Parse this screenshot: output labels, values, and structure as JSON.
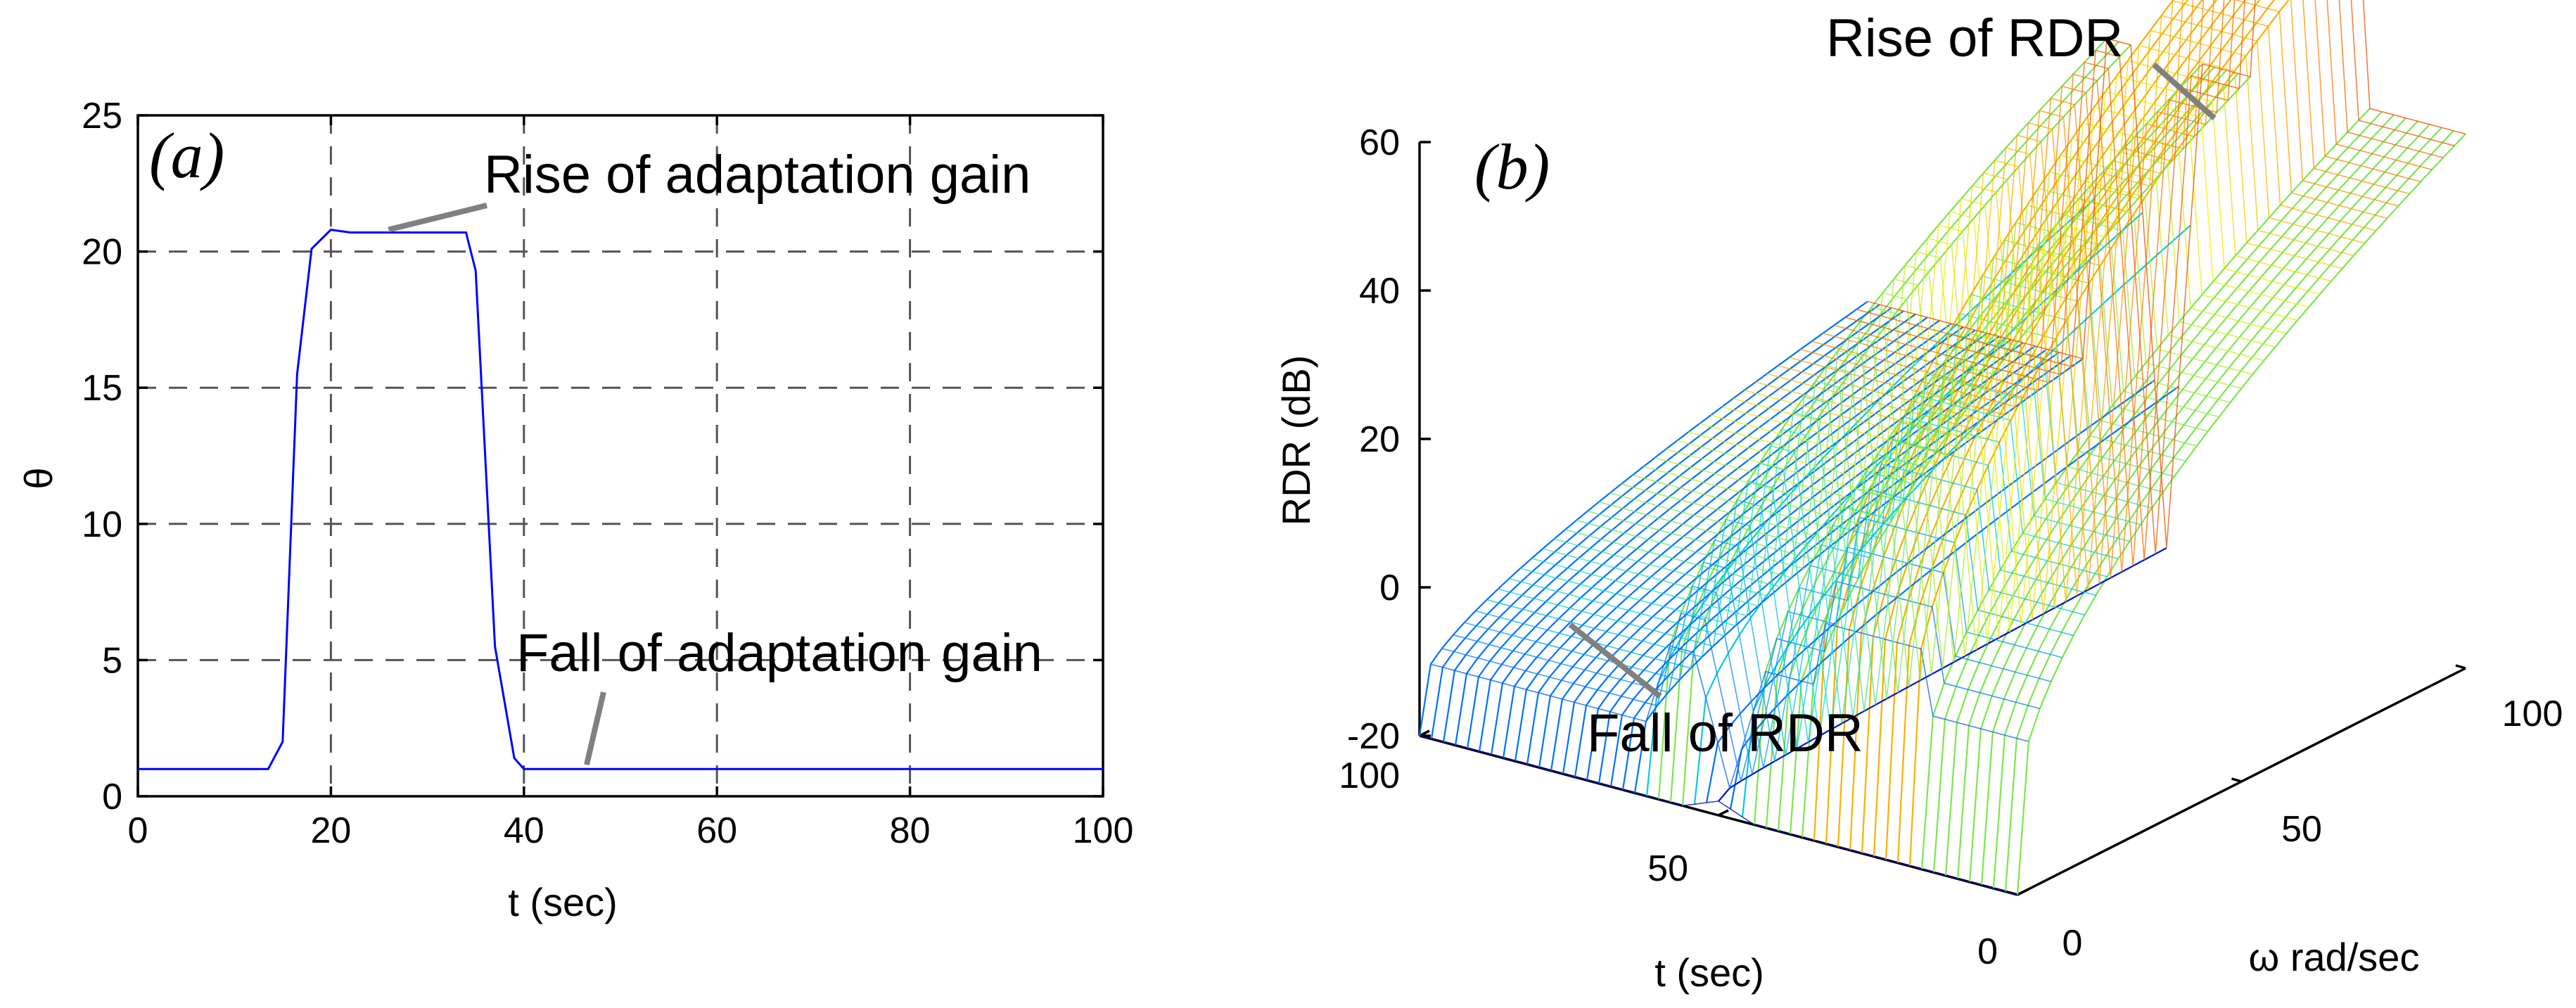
{
  "colors": {
    "theta_line": "#0000ff",
    "leader": "#808080",
    "grid": "#555555"
  },
  "chart_data": [
    {
      "id": "a",
      "type": "line",
      "panel_label": "(a)",
      "xlabel": "t (sec)",
      "ylabel": "θ",
      "xlim": [
        0,
        100
      ],
      "ylim": [
        0,
        25
      ],
      "xticks": [
        0,
        20,
        40,
        60,
        80,
        100
      ],
      "yticks": [
        0,
        5,
        10,
        15,
        20,
        25
      ],
      "grid": true,
      "series": [
        {
          "name": "theta",
          "x": [
            0,
            13.5,
            15,
            16.5,
            18,
            20,
            22,
            30,
            34,
            35,
            37,
            39,
            40,
            100
          ],
          "y": [
            1,
            1,
            2,
            15.5,
            20.1,
            20.8,
            20.7,
            20.7,
            20.7,
            19.3,
            5.5,
            1.4,
            1,
            1
          ]
        }
      ],
      "annotations": [
        {
          "text": "Rise of adaptation gain",
          "point": [
            27,
            20.7
          ]
        },
        {
          "text": "Fall of adaptation gain",
          "point": [
            46.5,
            1
          ]
        }
      ]
    },
    {
      "id": "b",
      "type": "surface-mesh",
      "panel_label": "(b)",
      "xlabel": "t (sec)",
      "ylabel": "ω rad/sec",
      "zlabel": "RDR (dB)",
      "xlim": [
        0,
        100
      ],
      "ylim": [
        0,
        100
      ],
      "zlim": [
        -20,
        60
      ],
      "xticks": [
        0,
        50,
        100
      ],
      "yticks": [
        0,
        50,
        100
      ],
      "zticks": [
        -20,
        0,
        20,
        40,
        60
      ],
      "description_values": {
        "baseline_low_dB": 0,
        "baseline_high_dB": 40,
        "peak_dB": 60,
        "trough_dB": -20,
        "rise_t_sec": [
          20,
          35
        ],
        "fall_t_sec": [
          36,
          42
        ]
      },
      "annotations": [
        {
          "text": "Rise of RDR"
        },
        {
          "text": "Fall of RDR"
        }
      ]
    }
  ]
}
